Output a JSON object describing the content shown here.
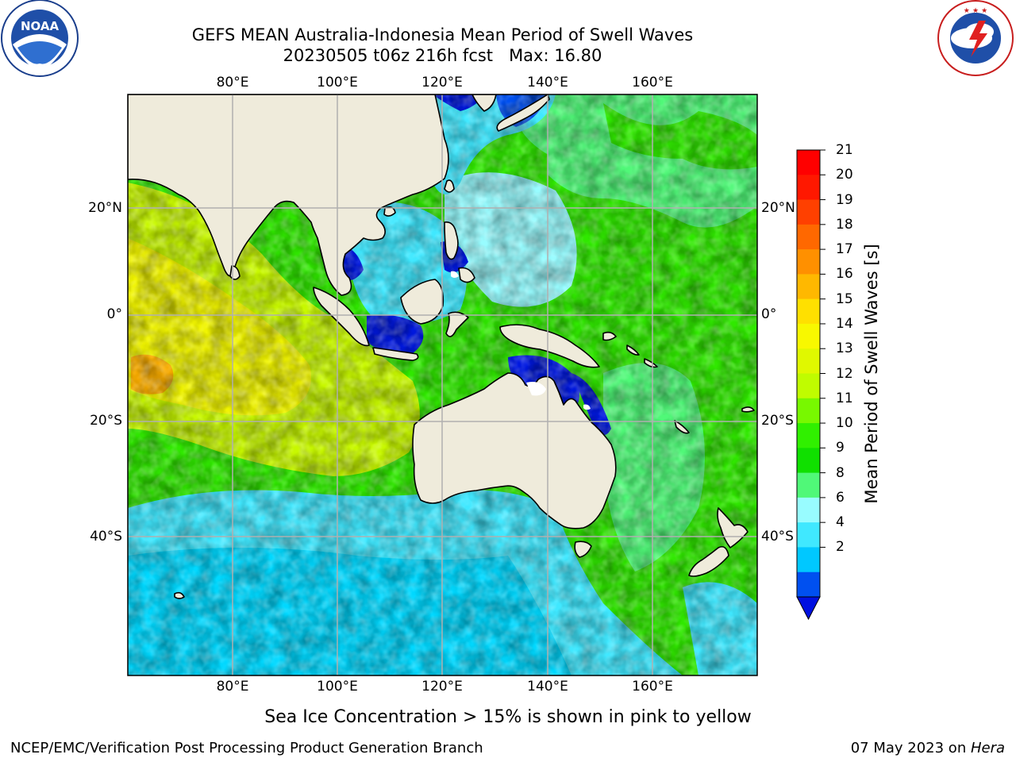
{
  "title_line1": "GEFS MEAN Australia-Indonesia Mean Period of Swell Waves",
  "title_line2": "20230505 t06z 216h fcst   Max: 16.80",
  "logos": {
    "left": {
      "name": "noaa-logo",
      "text": "NOAA",
      "ring_text": "NATIONAL OCEANIC AND ATMOSPHERIC ADMINISTRATION · U.S. DEPARTMENT OF COMMERCE"
    },
    "right": {
      "name": "nws-logo",
      "ring_text": "NATIONAL WEATHER SERVICE"
    }
  },
  "map": {
    "lon_ticks": [
      "80°E",
      "100°E",
      "120°E",
      "140°E",
      "160°E"
    ],
    "lat_ticks": [
      "20°N",
      "0°",
      "20°S",
      "40°S"
    ],
    "land_color": "#efebdb",
    "coast_color": "#000000",
    "grid_color": "#b0b0b0"
  },
  "colorbar": {
    "label": "Mean Period of Swell Waves [s]",
    "ticks": [
      "21",
      "20",
      "19",
      "18",
      "17",
      "16",
      "15",
      "14",
      "13",
      "12",
      "11",
      "10",
      "9",
      "8",
      "6",
      "4",
      "2"
    ],
    "colors": [
      "#0050f0",
      "#00c8ff",
      "#40e8ff",
      "#98fcff",
      "#50f878",
      "#10e000",
      "#30f000",
      "#78f800",
      "#c0fc00",
      "#e0f800",
      "#f8f800",
      "#ffe000",
      "#ffb800",
      "#ff9000",
      "#ff6800",
      "#ff4000",
      "#ff1800",
      "#ff0000"
    ],
    "extend_color": "#0010e0"
  },
  "footer": {
    "caption": "Sea Ice Concentration > 15% is shown in pink to yellow",
    "left": "NCEP/EMC/Verification Post Processing Product Generation Branch",
    "right_date": "07 May 2023 on ",
    "right_system": "Hera"
  }
}
